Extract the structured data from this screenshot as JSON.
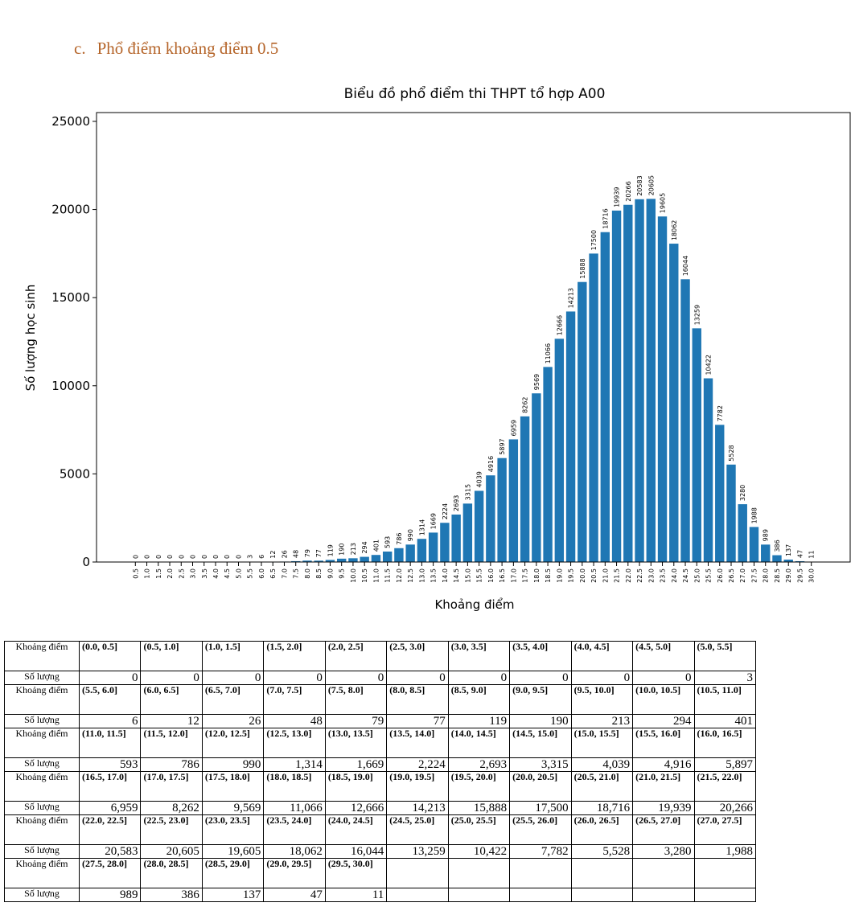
{
  "document": {
    "heading": {
      "marker": "c.",
      "text": "Phổ điểm khoảng điểm 0.5"
    }
  },
  "chart_data": {
    "type": "bar",
    "title": "Biểu đồ phổ điểm thi THPT tổ hợp A00",
    "xlabel": "Khoảng điểm",
    "ylabel": "Số lượng học sinh",
    "categories": [
      "0.5",
      "1.0",
      "1.5",
      "2.0",
      "2.5",
      "3.0",
      "3.5",
      "4.0",
      "4.5",
      "5.0",
      "5.5",
      "6.0",
      "6.5",
      "7.0",
      "7.5",
      "8.0",
      "8.5",
      "9.0",
      "9.5",
      "10.0",
      "10.5",
      "11.0",
      "11.5",
      "12.0",
      "12.5",
      "13.0",
      "13.5",
      "14.0",
      "14.5",
      "15.0",
      "15.5",
      "16.0",
      "16.5",
      "17.0",
      "17.5",
      "18.0",
      "18.5",
      "19.0",
      "19.5",
      "20.0",
      "20.5",
      "21.0",
      "21.5",
      "22.0",
      "22.5",
      "23.0",
      "23.5",
      "24.0",
      "24.5",
      "25.0",
      "25.5",
      "26.0",
      "26.5",
      "27.0",
      "27.5",
      "28.0",
      "28.5",
      "29.0",
      "29.5",
      "30.0"
    ],
    "values": [
      0,
      0,
      0,
      0,
      0,
      0,
      0,
      0,
      0,
      0,
      3,
      6,
      12,
      26,
      48,
      79,
      77,
      119,
      190,
      213,
      294,
      401,
      593,
      786,
      990,
      1314,
      1669,
      2224,
      2693,
      3315,
      4039,
      4916,
      5897,
      6959,
      8262,
      9569,
      11066,
      12666,
      14213,
      15888,
      17500,
      18716,
      19939,
      20266,
      20583,
      20605,
      19605,
      18062,
      16044,
      13259,
      10422,
      7782,
      5528,
      3280,
      1988,
      989,
      386,
      137,
      47,
      11
    ],
    "color": "#1f77b4",
    "ylim": [
      0,
      25500
    ],
    "yticks": [
      0,
      5000,
      10000,
      15000,
      20000,
      25000
    ]
  },
  "table": {
    "range_header": "Khoảng điểm",
    "count_header": "Số lượng",
    "groups": [
      {
        "ranges": [
          "(0.0, 0.5]",
          "(0.5, 1.0]",
          "(1.0, 1.5]",
          "(1.5, 2.0]",
          "(2.0, 2.5]",
          "(2.5, 3.0]",
          "(3.0, 3.5]",
          "(3.5, 4.0]",
          "(4.0, 4.5]",
          "(4.5, 5.0]",
          "(5.0, 5.5]"
        ],
        "counts": [
          "0",
          "0",
          "0",
          "0",
          "0",
          "0",
          "0",
          "0",
          "0",
          "0",
          "3"
        ]
      },
      {
        "ranges": [
          "(5.5, 6.0]",
          "(6.0, 6.5]",
          "(6.5, 7.0]",
          "(7.0, 7.5]",
          "(7.5, 8.0]",
          "(8.0, 8.5]",
          "(8.5, 9.0]",
          "(9.0, 9.5]",
          "(9.5, 10.0]",
          "(10.0, 10.5]",
          "(10.5, 11.0]"
        ],
        "counts": [
          "6",
          "12",
          "26",
          "48",
          "79",
          "77",
          "119",
          "190",
          "213",
          "294",
          "401"
        ]
      },
      {
        "ranges": [
          "(11.0, 11.5]",
          "(11.5, 12.0]",
          "(12.0, 12.5]",
          "(12.5, 13.0]",
          "(13.0, 13.5]",
          "(13.5, 14.0]",
          "(14.0, 14.5]",
          "(14.5, 15.0]",
          "(15.0, 15.5]",
          "(15.5, 16.0]",
          "(16.0, 16.5]"
        ],
        "counts": [
          "593",
          "786",
          "990",
          "1,314",
          "1,669",
          "2,224",
          "2,693",
          "3,315",
          "4,039",
          "4,916",
          "5,897"
        ]
      },
      {
        "ranges": [
          "(16.5, 17.0]",
          "(17.0, 17.5]",
          "(17.5, 18.0]",
          "(18.0, 18.5]",
          "(18.5, 19.0]",
          "(19.0, 19.5]",
          "(19.5, 20.0]",
          "(20.0, 20.5]",
          "(20.5, 21.0]",
          "(21.0, 21.5]",
          "(21.5, 22.0]"
        ],
        "counts": [
          "6,959",
          "8,262",
          "9,569",
          "11,066",
          "12,666",
          "14,213",
          "15,888",
          "17,500",
          "18,716",
          "19,939",
          "20,266"
        ]
      },
      {
        "ranges": [
          "(22.0, 22.5]",
          "(22.5, 23.0]",
          "(23.0, 23.5]",
          "(23.5, 24.0]",
          "(24.0, 24.5]",
          "(24.5, 25.0]",
          "(25.0, 25.5]",
          "(25.5, 26.0]",
          "(26.0, 26.5]",
          "(26.5, 27.0]",
          "(27.0, 27.5]"
        ],
        "counts": [
          "20,583",
          "20,605",
          "19,605",
          "18,062",
          "16,044",
          "13,259",
          "10,422",
          "7,782",
          "5,528",
          "3,280",
          "1,988"
        ]
      },
      {
        "ranges": [
          "(27.5, 28.0]",
          "(28.0, 28.5]",
          "(28.5, 29.0]",
          "(29.0, 29.5]",
          "(29.5, 30.0]"
        ],
        "counts": [
          "989",
          "386",
          "137",
          "47",
          "11"
        ]
      }
    ]
  }
}
